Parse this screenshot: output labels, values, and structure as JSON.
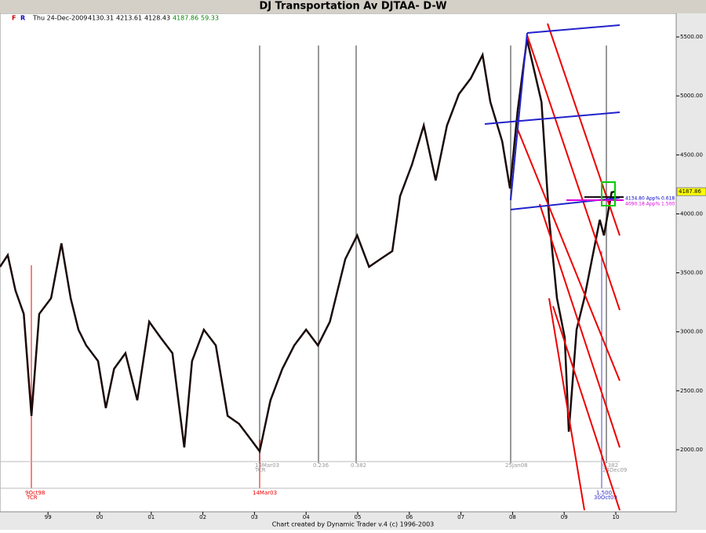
{
  "chart_data": {
    "type": "line",
    "title": "DJ Transportation Av DJTAA- D-W",
    "toolbar": [
      "F",
      "R"
    ],
    "info": {
      "date": "Thu 24-Dec-2009",
      "open": 4130.31,
      "high": 4213.61,
      "low": 4128.43,
      "close": 4187.86,
      "change": 59.33
    },
    "footer": "Chart created by Dynamic Trader v.4  (c) 1996-2003",
    "xlim": [
      1998.07,
      2011.17
    ],
    "ylim": [
      1474,
      5700
    ],
    "xticks": [
      {
        "value": 1999,
        "label": "99"
      },
      {
        "value": 2000,
        "label": "00"
      },
      {
        "value": 2001,
        "label": "01"
      },
      {
        "value": 2002,
        "label": "02"
      },
      {
        "value": 2003,
        "label": "03"
      },
      {
        "value": 2004,
        "label": "04"
      },
      {
        "value": 2005,
        "label": "05"
      },
      {
        "value": 2006,
        "label": "06"
      },
      {
        "value": 2007,
        "label": "07"
      },
      {
        "value": 2008,
        "label": "08"
      },
      {
        "value": 2009,
        "label": "09"
      },
      {
        "value": 2010,
        "label": "10"
      }
    ],
    "yticks": [
      {
        "value": 2000,
        "label": "2000.00"
      },
      {
        "value": 2500,
        "label": "2500.00"
      },
      {
        "value": 3000,
        "label": "3000.00"
      },
      {
        "value": 3500,
        "label": "3500.00"
      },
      {
        "value": 4000,
        "label": "4000.00"
      },
      {
        "value": 4500,
        "label": "4500.00"
      },
      {
        "value": 5000,
        "label": "5000.00"
      },
      {
        "value": 5500,
        "label": "5500.00"
      }
    ],
    "series": [
      {
        "name": "DJTAA",
        "color": "#1a0a0a",
        "x": [
          1998.07,
          1998.22,
          1998.37,
          1998.53,
          1998.68,
          1998.83,
          1999.06,
          1999.26,
          1999.44,
          1999.59,
          1999.74,
          1999.97,
          2000.12,
          2000.28,
          2000.5,
          2000.73,
          2000.96,
          2001.18,
          2001.41,
          2001.64,
          2001.79,
          2002.02,
          2002.25,
          2002.48,
          2002.7,
          2002.93,
          2003.1,
          2003.31,
          2003.54,
          2003.77,
          2004.0,
          2004.23,
          2004.46,
          2004.76,
          2004.99,
          2005.22,
          2005.44,
          2005.67,
          2005.82,
          2006.05,
          2006.28,
          2006.51,
          2006.73,
          2006.96,
          2007.19,
          2007.42,
          2007.57,
          2007.8,
          2007.95,
          2008.1,
          2008.28,
          2008.56,
          2008.71,
          2008.86,
          2009.01,
          2009.09,
          2009.24,
          2009.39,
          2009.54,
          2009.69,
          2009.77,
          2009.92,
          2009.98
        ],
        "values": [
          3551,
          3650,
          3351,
          3152,
          2287,
          3152,
          3285,
          3750,
          3285,
          3018,
          2885,
          2752,
          2353,
          2686,
          2819,
          2420,
          3085,
          2952,
          2819,
          2020,
          2752,
          3018,
          2885,
          2287,
          2220,
          2087,
          1987,
          2420,
          2686,
          2885,
          3018,
          2885,
          3085,
          3617,
          3817,
          3551,
          3617,
          3684,
          4150,
          4416,
          4749,
          4283,
          4749,
          5015,
          5148,
          5347,
          4948,
          4615,
          4216,
          4882,
          5480,
          4948,
          3950,
          3285,
          2952,
          2153,
          3018,
          3285,
          3617,
          3950,
          3817,
          4183,
          4187.86
        ]
      }
    ],
    "annotations": [
      "14Mar03",
      "TCR",
      "0.236",
      "0.382",
      "25Jan08",
      "0.382",
      "24Dec09",
      "9Oct98",
      "TCR",
      "14Mar03",
      "1.500",
      "30Oct09",
      "4134.80 App% 0.618",
      "4090.18 App% 1.500"
    ]
  }
}
